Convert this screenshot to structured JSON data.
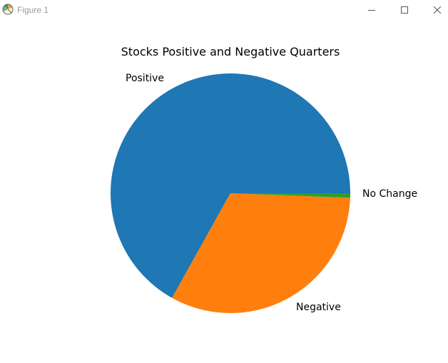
{
  "window": {
    "title": "Figure 1",
    "app_icon": "matplotlib-icon",
    "controls": {
      "minimize": "minimize-icon",
      "maximize": "maximize-icon",
      "close": "close-icon"
    }
  },
  "chart_data": {
    "type": "pie",
    "title": "Stocks Positive and Negative Quarters",
    "categories": [
      "Positive",
      "Negative",
      "No Change"
    ],
    "values": [
      66.9,
      32.5,
      0.6
    ],
    "colors": [
      "#1f77b4",
      "#ff7f0e",
      "#2ca02c"
    ],
    "start_angle_deg": 0,
    "direction": "counterclockwise"
  }
}
